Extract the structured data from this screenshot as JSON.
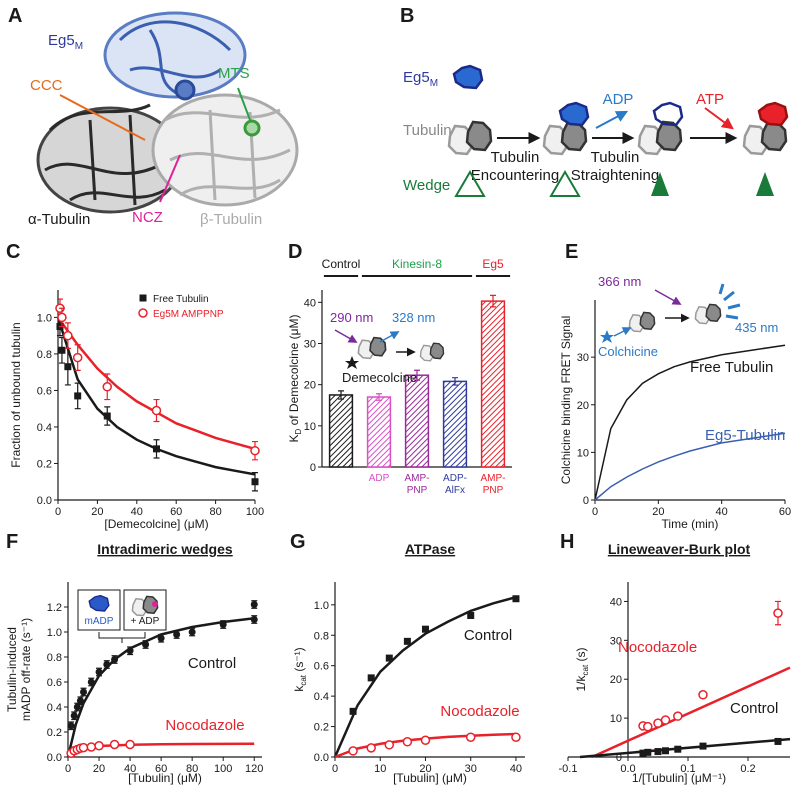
{
  "panel_a": {
    "label": "A",
    "eg5": {
      "text": "Eg5",
      "sub": "M"
    },
    "ccc": "CCC",
    "mts": "MTS",
    "ncz": "NCZ",
    "alpha": "α-Tubulin",
    "beta": "β-Tubulin"
  },
  "panel_b": {
    "label": "B",
    "eg5": {
      "text": "Eg5",
      "sub": "M"
    },
    "tubulin": "Tubulin",
    "wedge": "Wedge",
    "step1": [
      "Tubulin",
      "Encountering"
    ],
    "step2": [
      "Tubulin",
      "Straightening"
    ],
    "adp": "ADP",
    "atp": "ATP"
  },
  "chart_data": [
    {
      "type": "scatter",
      "panel_label": "C",
      "x_label": "[Demecolcine] (μM)",
      "y_label": "Fraction of unbound tubulin",
      "xlim": [
        0,
        100
      ],
      "xticks": [
        0,
        20,
        40,
        60,
        80,
        100
      ],
      "ylim": [
        0,
        1.15
      ],
      "yticks": [
        {
          "value": 0,
          "label": "0.0"
        },
        0.2,
        0.4,
        0.6,
        0.8,
        {
          "value": 1,
          "label": "1.0"
        }
      ],
      "legend": "upper right",
      "series": [
        {
          "name": "Free Tubulin",
          "color": "#1a1a1a",
          "marker": "square",
          "x": [
            1,
            2,
            5,
            10,
            25,
            50,
            100
          ],
          "values": [
            0.95,
            0.82,
            0.73,
            0.57,
            0.46,
            0.28,
            0.1
          ],
          "errors": [
            0.05,
            0.07,
            0.1,
            0.07,
            0.05,
            0.05,
            0.05
          ]
        },
        {
          "name": "Eg5M AMPPNP",
          "color": "#e8212a",
          "marker": "circle-open",
          "x": [
            1,
            2,
            5,
            10,
            25,
            50,
            100
          ],
          "values": [
            1.05,
            1.0,
            0.9,
            0.78,
            0.62,
            0.49,
            0.27
          ],
          "errors": [
            0.05,
            0.05,
            0.07,
            0.07,
            0.07,
            0.06,
            0.05
          ]
        }
      ],
      "fits": [
        {
          "color": "#1a1a1a",
          "x": [
            0,
            10,
            20,
            30,
            40,
            50,
            60,
            70,
            80,
            90,
            100
          ],
          "values": [
            1.0,
            0.66,
            0.5,
            0.4,
            0.33,
            0.28,
            0.24,
            0.21,
            0.18,
            0.16,
            0.14
          ]
        },
        {
          "color": "#e8212a",
          "x": [
            0,
            10,
            20,
            30,
            40,
            50,
            60,
            70,
            80,
            90,
            100
          ],
          "values": [
            1.0,
            0.85,
            0.72,
            0.62,
            0.54,
            0.48,
            0.42,
            0.38,
            0.34,
            0.31,
            0.28
          ]
        }
      ]
    },
    {
      "type": "bar",
      "panel_label": "D",
      "y_label": {
        "text": "K",
        "sub": "D",
        "rest": " of Demecolcine (μM)"
      },
      "categories": [
        null,
        "ADP",
        "AMP-PNP",
        "ADP-AlFx",
        "AMP-PNP"
      ],
      "values": [
        17.5,
        17,
        22.3,
        20.8,
        40.3
      ],
      "errors": [
        1,
        0.8,
        1.2,
        0.9,
        1.4
      ],
      "colors": [
        "#1a1a1a",
        "#d94fc8",
        "#9a2a9a",
        "#2e3a9e",
        "#e8212a"
      ],
      "hatch": true,
      "ylim": [
        0,
        43
      ],
      "yticks": [
        0,
        10,
        20,
        30,
        40
      ],
      "groups": [
        {
          "label": "Control",
          "color": "#1a1a1a"
        },
        {
          "label": "Kinesin-8",
          "color": "#1aa04a"
        },
        {
          "label": "Eg5",
          "color": "#e8212a"
        }
      ],
      "annotations": [
        {
          "text": "290 nm",
          "color": "#7a2a9a"
        },
        {
          "text": "328 nm",
          "color": "#2a7ac8"
        },
        {
          "text": "Demecolcine",
          "color": "#1a1a1a"
        }
      ]
    },
    {
      "type": "line",
      "panel_label": "E",
      "x_label": "Time (min)",
      "y_label": "Colchicine binding FRET Signal",
      "x": [
        0,
        5,
        10,
        15,
        20,
        25,
        30,
        40,
        50,
        60
      ],
      "xlim": [
        0,
        60
      ],
      "xticks": [
        0,
        20,
        40,
        60
      ],
      "ylim": [
        0,
        42
      ],
      "yticks": [
        0,
        10,
        20,
        30
      ],
      "series": [
        {
          "name": "Free Tubulin",
          "color": "#1a1a1a",
          "values": [
            0,
            15,
            21,
            24.5,
            26.5,
            28,
            29,
            30.5,
            31.5,
            32.5
          ]
        },
        {
          "name": "Eg5-Tubulin",
          "color": "#3a5fb0",
          "values": [
            0,
            2.8,
            4.8,
            6.5,
            8,
            9.2,
            10.3,
            12,
            13,
            14
          ]
        }
      ],
      "annotations": [
        {
          "text": "366 nm",
          "color": "#7a2a9a"
        },
        {
          "text": "435 nm",
          "color": "#2a7ac8"
        },
        {
          "text": "Colchicine",
          "color": "#2a7ac8"
        }
      ]
    },
    {
      "type": "scatter",
      "panel_label": "F",
      "title": "Intradimeric wedges",
      "x_label": "[Tubulin] (μM)",
      "y_label": [
        "Tubulin-induced",
        "mADP off-rate (s⁻¹)"
      ],
      "xlim": [
        0,
        125
      ],
      "xticks": [
        0,
        20,
        40,
        60,
        80,
        100,
        120
      ],
      "ylim": [
        0,
        1.4
      ],
      "yticks": [
        {
          "value": 0,
          "label": "0.0"
        },
        0.2,
        0.4,
        0.6,
        0.8,
        {
          "value": 1,
          "label": "1.0"
        },
        1.2
      ],
      "series": [
        {
          "name": "Control",
          "color": "#1a1a1a",
          "marker": "circle",
          "x": [
            2,
            4,
            6,
            8,
            10,
            15,
            20,
            25,
            30,
            40,
            50,
            60,
            70,
            80,
            100,
            120,
            120
          ],
          "values": [
            0.25,
            0.33,
            0.4,
            0.45,
            0.52,
            0.6,
            0.68,
            0.74,
            0.78,
            0.85,
            0.9,
            0.95,
            0.98,
            1.0,
            1.06,
            1.1,
            1.22
          ],
          "errors": [
            0.03,
            0.03,
            0.03,
            0.03,
            0.03,
            0.03,
            0.03,
            0.03,
            0.03,
            0.03,
            0.03,
            0.03,
            0.03,
            0.03,
            0.03,
            0.03,
            0.03
          ]
        },
        {
          "name": "Nocodazole",
          "color": "#e8212a",
          "marker": "circle-open",
          "x": [
            2,
            4,
            6,
            8,
            10,
            15,
            20,
            30,
            40
          ],
          "values": [
            0.03,
            0.05,
            0.06,
            0.07,
            0.075,
            0.08,
            0.09,
            0.1,
            0.1
          ]
        }
      ],
      "fits": [
        {
          "color": "#1a1a1a",
          "x": [
            0,
            5,
            10,
            20,
            30,
            40,
            60,
            80,
            100,
            120
          ],
          "values": [
            0,
            0.26,
            0.43,
            0.65,
            0.78,
            0.87,
            0.98,
            1.04,
            1.08,
            1.11
          ]
        },
        {
          "color": "#e8212a",
          "x": [
            0,
            5,
            10,
            20,
            40,
            60,
            80,
            100,
            120
          ],
          "values": [
            0,
            0.055,
            0.073,
            0.088,
            0.098,
            0.102,
            0.104,
            0.105,
            0.106
          ]
        }
      ],
      "annotations": [
        {
          "text": "mADP",
          "color": "#2a5ac8"
        },
        {
          "text": "+ ADP",
          "color": "#1a1a1a"
        }
      ]
    },
    {
      "type": "scatter",
      "panel_label": "G",
      "title": "ATPase",
      "x_label": "[Tubulin] (μM)",
      "y_label": {
        "text": "k",
        "sub": "cat",
        "rest": " (s⁻¹)"
      },
      "xlim": [
        0,
        42
      ],
      "xticks": [
        0,
        10,
        20,
        30,
        40
      ],
      "ylim": [
        0,
        1.15
      ],
      "yticks": [
        {
          "value": 0,
          "label": "0.0"
        },
        0.2,
        0.4,
        0.6,
        0.8,
        {
          "value": 1,
          "label": "1.0"
        }
      ],
      "series": [
        {
          "name": "Control",
          "color": "#1a1a1a",
          "marker": "square",
          "x": [
            4,
            8,
            12,
            16,
            20,
            30,
            40
          ],
          "values": [
            0.3,
            0.52,
            0.65,
            0.76,
            0.84,
            0.93,
            1.04
          ]
        },
        {
          "name": "Nocodazole",
          "color": "#e8212a",
          "marker": "circle-open",
          "x": [
            4,
            8,
            12,
            16,
            20,
            30,
            40
          ],
          "values": [
            0.04,
            0.06,
            0.08,
            0.1,
            0.11,
            0.13,
            0.13
          ]
        }
      ],
      "fits": [
        {
          "color": "#1a1a1a",
          "x": [
            0,
            5,
            10,
            15,
            20,
            25,
            30,
            35,
            40
          ],
          "values": [
            0,
            0.34,
            0.56,
            0.7,
            0.81,
            0.89,
            0.96,
            1.01,
            1.05
          ]
        },
        {
          "color": "#e8212a",
          "x": [
            0,
            5,
            10,
            15,
            20,
            25,
            30,
            35,
            40
          ],
          "values": [
            0,
            0.056,
            0.087,
            0.107,
            0.121,
            0.132,
            0.14,
            0.146,
            0.151
          ]
        }
      ]
    },
    {
      "type": "scatter",
      "panel_label": "H",
      "title": "Lineweaver-Burk plot",
      "x_label": "1/[Tubulin] (μM⁻¹)",
      "y_label": {
        "text": "1/k",
        "sub": "cat",
        "rest": " (s)"
      },
      "xlim": [
        -0.1,
        0.27
      ],
      "xticks": [
        -0.1,
        {
          "value": 0,
          "label": "0.0"
        },
        0.1,
        0.2
      ],
      "ylim": [
        0,
        45
      ],
      "yticks": [
        0,
        10,
        20,
        30,
        40
      ],
      "series": [
        {
          "name": "Nocodazole",
          "color": "#e8212a",
          "marker": "circle-open",
          "x": [
            0.025,
            0.033,
            0.05,
            0.0625,
            0.083,
            0.125,
            0.25
          ],
          "values": [
            8,
            7.8,
            8.7,
            9.5,
            10.5,
            16,
            37
          ],
          "errors": [
            0.5,
            0.5,
            0.5,
            0.5,
            0.6,
            0.8,
            3
          ]
        },
        {
          "name": "Control",
          "color": "#1a1a1a",
          "marker": "square",
          "x": [
            0.025,
            0.033,
            0.05,
            0.0625,
            0.083,
            0.125,
            0.25
          ],
          "values": [
            1,
            1.2,
            1.4,
            1.6,
            2,
            2.8,
            4
          ]
        }
      ],
      "fits": [
        {
          "color": "#e8212a",
          "x": [
            -0.06,
            0.27
          ],
          "values": [
            0,
            23
          ]
        },
        {
          "color": "#1a1a1a",
          "x": [
            -0.08,
            0.27
          ],
          "values": [
            0,
            4.6
          ]
        }
      ]
    }
  ]
}
